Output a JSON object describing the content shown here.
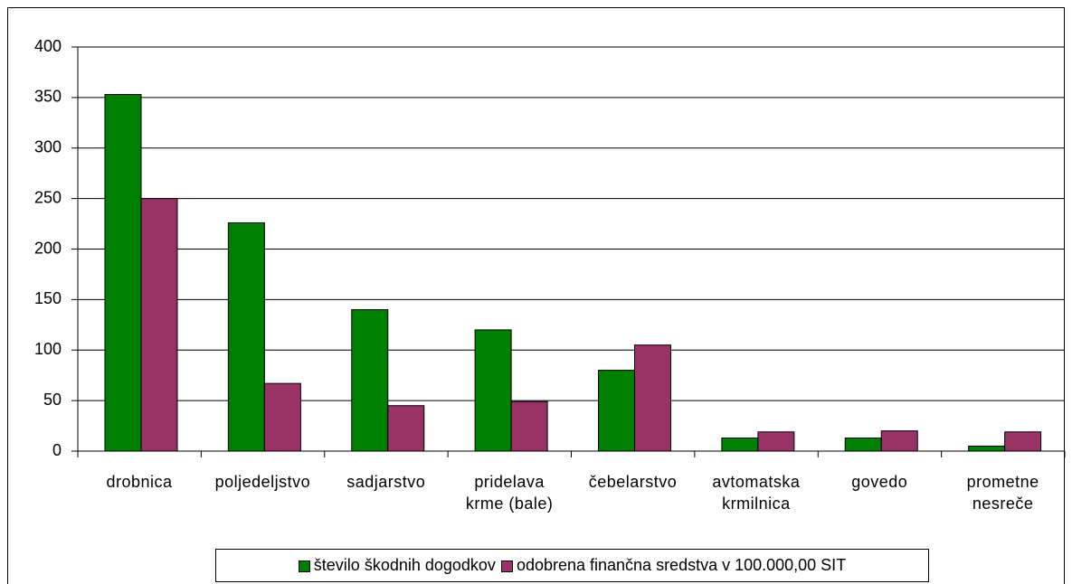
{
  "chart_data": {
    "type": "bar",
    "categories": [
      "drobnica",
      "poljedeljstvo",
      "sadjarstvo",
      "pridelava\nkrme (bale)",
      "čebelarstvo",
      "avtomatska\nkrmilnica",
      "govedo",
      "prometne\nnesreče"
    ],
    "series": [
      {
        "name": "število škodnih dogodkov",
        "color": "#008000",
        "values": [
          353,
          226,
          140,
          120,
          80,
          13,
          13,
          5
        ]
      },
      {
        "name": "odobrena finančna sredstva v 100.000,00 SIT",
        "color": "#993366",
        "values": [
          250,
          67,
          45,
          49,
          105,
          19,
          20,
          19
        ]
      }
    ],
    "ylim": [
      0,
      400
    ],
    "yticks": [
      0,
      50,
      100,
      150,
      200,
      250,
      300,
      350,
      400
    ],
    "grid": true,
    "legend": "bottom"
  }
}
